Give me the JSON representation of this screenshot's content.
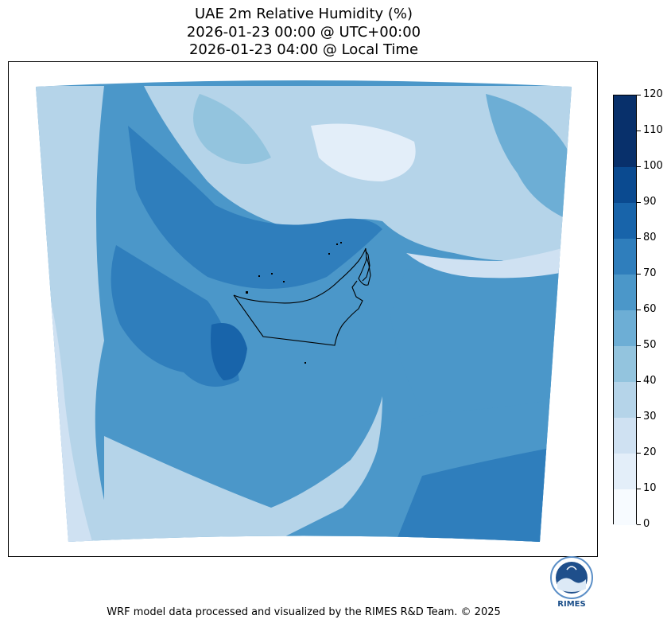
{
  "title": {
    "line1": "UAE 2m Relative Humidity (%)",
    "line2": "2026-01-23 00:00 @ UTC+00:00",
    "line3": "2026-01-23 04:00 @ Local Time"
  },
  "colorbar": {
    "levels": [
      0,
      10,
      20,
      30,
      40,
      50,
      60,
      70,
      80,
      90,
      100,
      110,
      120
    ],
    "labels": [
      "0",
      "10",
      "20",
      "30",
      "40",
      "50",
      "60",
      "70",
      "80",
      "90",
      "100",
      "110",
      "120"
    ],
    "colors": [
      "#f7fbff",
      "#e3eef9",
      "#cfe1f2",
      "#b5d4e9",
      "#93c4de",
      "#6daed5",
      "#4b97c9",
      "#2f7ebc",
      "#1864aa",
      "#0a4a90",
      "#08306b",
      "#08306b"
    ]
  },
  "palette": {
    "c10": "#e3eef9",
    "c20": "#cfe1f2",
    "c30": "#b5d4e9",
    "c40": "#93c4de",
    "c50": "#6daed5",
    "c60": "#4b97c9",
    "c70": "#2f7ebc",
    "c80": "#1864aa"
  },
  "logo": {
    "text": "RIMES"
  },
  "footer": "WRF model data processed and visualized by the RIMES R&D Team. © 2025"
}
